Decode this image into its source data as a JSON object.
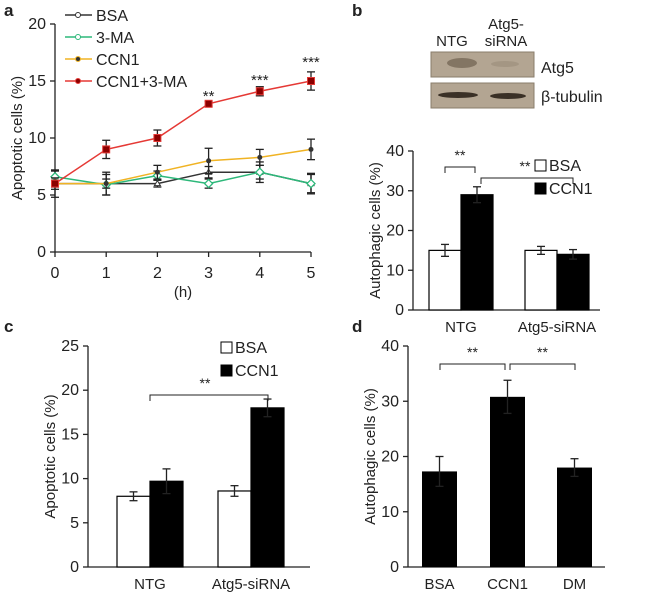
{
  "panels": {
    "a": "a",
    "b": "b",
    "c": "c",
    "d": "d"
  },
  "blot": {
    "lanes": [
      "NTG",
      "Atg5-\nsiRNA"
    ],
    "bands": [
      "Atg5",
      "β-tubulin"
    ]
  },
  "chart_data": [
    {
      "id": "a",
      "type": "line",
      "xlabel": "(h)",
      "ylabel": "Apoptotic cells (%)",
      "x": [
        0,
        1,
        2,
        3,
        4,
        5
      ],
      "ylim": [
        0,
        20
      ],
      "yticks": [
        0,
        5,
        10,
        15,
        20
      ],
      "series": [
        {
          "name": "BSA",
          "color": "#333333",
          "marker": "triangle-open",
          "values": [
            6,
            6,
            6,
            7,
            7,
            6
          ],
          "err": [
            1.2,
            1,
            0.3,
            0.5,
            0.6,
            0.8
          ]
        },
        {
          "name": "3-MA",
          "color": "#2db87a",
          "marker": "diamond-open",
          "values": [
            6.6,
            5.9,
            6.7,
            6,
            7,
            6
          ],
          "err": [
            0.5,
            0.9,
            0.4,
            0.4,
            0.9,
            0.9
          ]
        },
        {
          "name": "CCN1",
          "color": "#f0b323",
          "marker": "dot",
          "values": [
            6,
            6,
            7,
            8,
            8.3,
            9
          ],
          "err": [
            0.5,
            0.4,
            0.6,
            1.1,
            0.7,
            0.9
          ]
        },
        {
          "name": "CCN1+3-MA",
          "color": "#e53935",
          "marker": "square",
          "values": [
            6,
            9,
            10,
            13,
            14.1,
            15
          ],
          "err": [
            0.3,
            0.8,
            0.7,
            0.2,
            0.4,
            0.8
          ]
        }
      ],
      "annotations": [
        {
          "x": 3,
          "text": "**"
        },
        {
          "x": 4,
          "text": "***"
        },
        {
          "x": 5,
          "text": "***"
        }
      ]
    },
    {
      "id": "b",
      "type": "bar",
      "ylabel": "Autophagic cells (%)",
      "categories": [
        "NTG",
        "Atg5-siRNA"
      ],
      "ylim": [
        0,
        40
      ],
      "yticks": [
        0,
        10,
        20,
        30,
        40
      ],
      "series": [
        {
          "name": "BSA",
          "values": [
            15,
            15
          ],
          "err": [
            1.5,
            1
          ]
        },
        {
          "name": "CCN1",
          "values": [
            29,
            14
          ],
          "err": [
            2,
            1.2
          ]
        }
      ],
      "annotations": [
        "**",
        "**"
      ]
    },
    {
      "id": "c",
      "type": "bar",
      "ylabel": "Apoptotic cells (%)",
      "categories": [
        "NTG",
        "Atg5-siRNA"
      ],
      "ylim": [
        0,
        25
      ],
      "yticks": [
        0,
        5,
        10,
        15,
        20,
        25
      ],
      "series": [
        {
          "name": "BSA",
          "values": [
            8,
            8.6
          ],
          "err": [
            0.5,
            0.6
          ]
        },
        {
          "name": "CCN1",
          "values": [
            9.7,
            18
          ],
          "err": [
            1.4,
            1
          ]
        }
      ],
      "annotations": [
        "**"
      ]
    },
    {
      "id": "d",
      "type": "bar",
      "ylabel": "Autophagic cells (%)",
      "categories": [
        "BSA",
        "CCN1",
        "DM"
      ],
      "ylim": [
        0,
        40
      ],
      "yticks": [
        0,
        10,
        20,
        30,
        40
      ],
      "values": [
        17.3,
        30.8,
        18
      ],
      "err": [
        2.7,
        3,
        1.6
      ],
      "annotations": [
        "**",
        "**"
      ]
    }
  ]
}
